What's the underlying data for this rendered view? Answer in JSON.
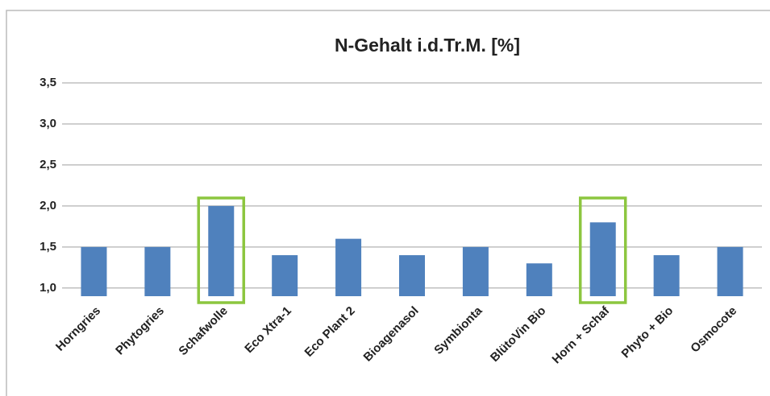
{
  "chart_data": {
    "type": "bar",
    "title": "N-Gehalt i.d.Tr.M. [%]",
    "categories": [
      "Horngries",
      "Phytogries",
      "Schafwolle",
      "Eco Xtra-1",
      "Eco Plant 2",
      "Bioagenasol",
      "Symbionta",
      "BlütoVin Bio",
      "Horn + Schaf",
      "Phyto + Bio",
      "Osmocote"
    ],
    "values": [
      1.5,
      1.5,
      2.0,
      1.4,
      1.6,
      1.4,
      1.5,
      1.3,
      1.8,
      1.4,
      1.5
    ],
    "color": "#4f81bd",
    "ylim": [
      0.9,
      3.5
    ],
    "yticks": [
      {
        "value": 1,
        "label": "1,0"
      },
      {
        "value": 1.5,
        "label": "1,5"
      },
      {
        "value": 2,
        "label": "2,0"
      },
      {
        "value": 2.5,
        "label": "2,5"
      },
      {
        "value": 3,
        "label": "3,0"
      },
      {
        "value": 3.5,
        "label": "3,5"
      }
    ],
    "grid": true,
    "highlight": [
      2,
      8
    ],
    "highlight_color": "#8cc63f"
  }
}
